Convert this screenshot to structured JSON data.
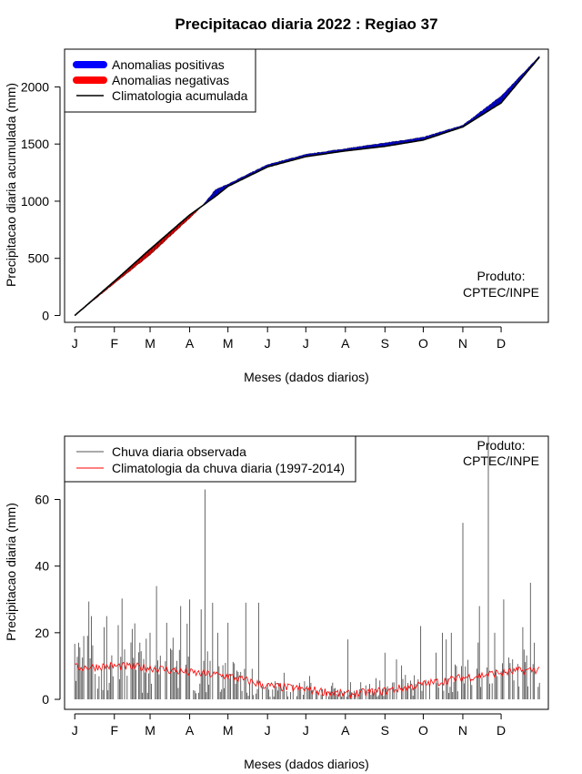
{
  "title": "Precipitacao diaria 2022 : Regiao 37",
  "credit": {
    "line1": "Produto:",
    "line2": "CPTEC/INPE"
  },
  "months": [
    "J",
    "F",
    "M",
    "A",
    "M",
    "J",
    "J",
    "A",
    "S",
    "O",
    "N",
    "D"
  ],
  "colors": {
    "positive": "#0000ff",
    "negative": "#ff0000",
    "clim_line": "#000000",
    "obs_line": "#555555",
    "clim_daily": "#ff0000"
  },
  "chart_data": [
    {
      "type": "area",
      "xlabel": "Meses (dados diarios)",
      "ylabel": "Precipitacao diaria acumulada (mm)",
      "ylim": [
        -60,
        2330
      ],
      "yticks": [
        0,
        500,
        1000,
        1500,
        2000
      ],
      "x_unit": "day of year 2022",
      "xlim": [
        -7,
        372
      ],
      "legend": {
        "position": "top-left",
        "entries": [
          "Anomalias positivas",
          "Anomalias negativas",
          "Climatologia acumulada"
        ]
      },
      "climatology_accumulated": {
        "x": [
          1,
          32,
          60,
          91,
          111,
          121,
          152,
          182,
          213,
          244,
          274,
          305,
          335,
          365
        ],
        "y": [
          0,
          300,
          580,
          880,
          1040,
          1130,
          1300,
          1390,
          1440,
          1480,
          1535,
          1650,
          1860,
          2260
        ]
      },
      "observed_accumulated": {
        "x": [
          1,
          32,
          60,
          91,
          101,
          111,
          121,
          152,
          182,
          213,
          244,
          274,
          305,
          335,
          365
        ],
        "y": [
          0,
          280,
          530,
          850,
          960,
          1100,
          1150,
          1320,
          1410,
          1460,
          1510,
          1560,
          1665,
          1920,
          2270
        ]
      }
    },
    {
      "type": "line",
      "xlabel": "Meses (dados diarios)",
      "ylabel": "Precipitacao diaria (mm)",
      "ylim": [
        -3,
        79
      ],
      "yticks": [
        0,
        20,
        40,
        60
      ],
      "x_unit": "day of year 2022",
      "xlim": [
        -7,
        372
      ],
      "legend": {
        "position": "top-left",
        "entries": [
          "Chuva diaria observada",
          "Climatologia da chuva diaria (1997-2014)"
        ]
      },
      "observed_daily_peaks": {
        "x": [
          4,
          8,
          14,
          26,
          40,
          52,
          60,
          65,
          73,
          84,
          91,
          100,
          103,
          109,
          113,
          121,
          135,
          145,
          165,
          185,
          203,
          215,
          244,
          253,
          272,
          289,
          296,
          305,
          318,
          325,
          330,
          337,
          344,
          358,
          361
        ],
        "y": [
          17,
          19,
          25,
          25,
          15,
          17,
          20,
          34,
          23,
          28,
          30,
          27,
          63,
          29,
          20,
          23,
          29,
          29,
          8,
          7,
          5,
          18,
          14,
          12,
          22,
          20,
          20,
          53,
          28,
          79,
          20,
          30,
          12,
          35,
          17
        ]
      },
      "climatology_daily": {
        "x": [
          1,
          30,
          60,
          91,
          121,
          152,
          182,
          213,
          244,
          274,
          305,
          335,
          365
        ],
        "y": [
          9.5,
          10,
          9.5,
          8,
          7,
          4,
          3,
          1.5,
          2.5,
          4.5,
          6.5,
          8,
          9
        ]
      }
    }
  ]
}
